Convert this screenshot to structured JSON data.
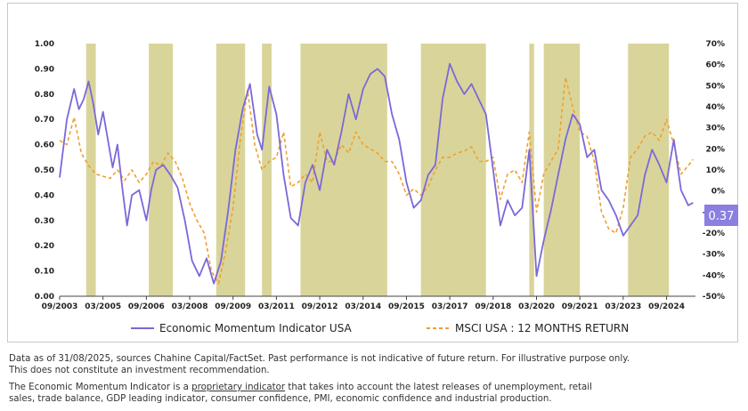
{
  "chart_data": {
    "type": "line",
    "y_left_ticks": [
      "1.00",
      "0.90",
      "0.80",
      "0.70",
      "0.60",
      "0.50",
      "0.40",
      "0.30",
      "0.20",
      "0.10",
      "0.00"
    ],
    "y_right_ticks": [
      "70%",
      "60%",
      "50%",
      "40%",
      "30%",
      "20%",
      "10%",
      "0%",
      "-10%",
      "-20%",
      "-30%",
      "-40%",
      "-50%"
    ],
    "x_ticks": [
      "09/2003",
      "03/2005",
      "09/2006",
      "03/2008",
      "09/2009",
      "03/2011",
      "09/2012",
      "03/2014",
      "09/2015",
      "03/2017",
      "09/2018",
      "03/2020",
      "09/2021",
      "03/2023",
      "09/2024"
    ],
    "ylim_left": [
      0,
      1
    ],
    "ylim_right": [
      -50,
      70
    ],
    "shaded_periods": [
      [
        "2004-08",
        "2004-12"
      ],
      [
        "2006-10",
        "2007-08"
      ],
      [
        "2009-02",
        "2010-02"
      ],
      [
        "2010-09",
        "2011-01"
      ],
      [
        "2012-01",
        "2015-01"
      ],
      [
        "2016-03",
        "2018-06"
      ],
      [
        "2019-12",
        "2020-02"
      ],
      [
        "2020-06",
        "2021-09"
      ],
      [
        "2023-05",
        "2024-10"
      ]
    ],
    "series": [
      {
        "name": "Economic Momentum Indicator USA",
        "axis": "left",
        "color": "#7b68d9",
        "style": "solid",
        "points": [
          [
            "2003-09",
            0.47
          ],
          [
            "2003-12",
            0.7
          ],
          [
            "2004-03",
            0.82
          ],
          [
            "2004-05",
            0.74
          ],
          [
            "2004-07",
            0.78
          ],
          [
            "2004-09",
            0.85
          ],
          [
            "2004-11",
            0.76
          ],
          [
            "2005-01",
            0.64
          ],
          [
            "2005-03",
            0.73
          ],
          [
            "2005-05",
            0.62
          ],
          [
            "2005-07",
            0.51
          ],
          [
            "2005-09",
            0.6
          ],
          [
            "2005-11",
            0.43
          ],
          [
            "2006-01",
            0.28
          ],
          [
            "2006-03",
            0.4
          ],
          [
            "2006-06",
            0.42
          ],
          [
            "2006-09",
            0.3
          ],
          [
            "2006-11",
            0.42
          ],
          [
            "2007-01",
            0.5
          ],
          [
            "2007-04",
            0.52
          ],
          [
            "2007-07",
            0.48
          ],
          [
            "2007-10",
            0.43
          ],
          [
            "2008-01",
            0.3
          ],
          [
            "2008-04",
            0.14
          ],
          [
            "2008-07",
            0.08
          ],
          [
            "2008-10",
            0.15
          ],
          [
            "2009-01",
            0.05
          ],
          [
            "2009-04",
            0.14
          ],
          [
            "2009-07",
            0.34
          ],
          [
            "2009-10",
            0.58
          ],
          [
            "2010-01",
            0.74
          ],
          [
            "2010-04",
            0.84
          ],
          [
            "2010-07",
            0.64
          ],
          [
            "2010-09",
            0.58
          ],
          [
            "2010-12",
            0.83
          ],
          [
            "2011-03",
            0.72
          ],
          [
            "2011-06",
            0.48
          ],
          [
            "2011-09",
            0.31
          ],
          [
            "2011-12",
            0.28
          ],
          [
            "2012-03",
            0.45
          ],
          [
            "2012-06",
            0.52
          ],
          [
            "2012-09",
            0.42
          ],
          [
            "2012-12",
            0.58
          ],
          [
            "2013-03",
            0.52
          ],
          [
            "2013-06",
            0.65
          ],
          [
            "2013-09",
            0.8
          ],
          [
            "2013-12",
            0.7
          ],
          [
            "2014-03",
            0.82
          ],
          [
            "2014-06",
            0.88
          ],
          [
            "2014-09",
            0.9
          ],
          [
            "2014-12",
            0.87
          ],
          [
            "2015-03",
            0.72
          ],
          [
            "2015-06",
            0.62
          ],
          [
            "2015-09",
            0.45
          ],
          [
            "2015-12",
            0.35
          ],
          [
            "2016-03",
            0.38
          ],
          [
            "2016-06",
            0.48
          ],
          [
            "2016-09",
            0.52
          ],
          [
            "2016-12",
            0.78
          ],
          [
            "2017-03",
            0.92
          ],
          [
            "2017-06",
            0.85
          ],
          [
            "2017-09",
            0.8
          ],
          [
            "2017-12",
            0.84
          ],
          [
            "2018-03",
            0.78
          ],
          [
            "2018-06",
            0.72
          ],
          [
            "2018-09",
            0.5
          ],
          [
            "2018-12",
            0.28
          ],
          [
            "2019-03",
            0.38
          ],
          [
            "2019-06",
            0.32
          ],
          [
            "2019-09",
            0.35
          ],
          [
            "2019-12",
            0.58
          ],
          [
            "2020-03",
            0.08
          ],
          [
            "2020-06",
            0.22
          ],
          [
            "2020-09",
            0.34
          ],
          [
            "2020-12",
            0.48
          ],
          [
            "2021-03",
            0.62
          ],
          [
            "2021-06",
            0.72
          ],
          [
            "2021-09",
            0.68
          ],
          [
            "2021-12",
            0.55
          ],
          [
            "2022-03",
            0.58
          ],
          [
            "2022-06",
            0.42
          ],
          [
            "2022-09",
            0.38
          ],
          [
            "2022-12",
            0.32
          ],
          [
            "2023-03",
            0.24
          ],
          [
            "2023-06",
            0.28
          ],
          [
            "2023-09",
            0.32
          ],
          [
            "2023-12",
            0.48
          ],
          [
            "2024-03",
            0.58
          ],
          [
            "2024-06",
            0.52
          ],
          [
            "2024-09",
            0.45
          ],
          [
            "2024-12",
            0.62
          ],
          [
            "2025-03",
            0.42
          ],
          [
            "2025-06",
            0.36
          ],
          [
            "2025-08",
            0.37
          ]
        ]
      },
      {
        "name": "MSCI USA : 12 MONTHS RETURN",
        "axis": "right",
        "color": "#f0a030",
        "style": "dashed",
        "points": [
          [
            "2003-09",
            24
          ],
          [
            "2003-12",
            22
          ],
          [
            "2004-03",
            35
          ],
          [
            "2004-06",
            18
          ],
          [
            "2004-09",
            12
          ],
          [
            "2004-12",
            8
          ],
          [
            "2005-03",
            7
          ],
          [
            "2005-06",
            6
          ],
          [
            "2005-09",
            10
          ],
          [
            "2005-12",
            5
          ],
          [
            "2006-03",
            10
          ],
          [
            "2006-06",
            4
          ],
          [
            "2006-09",
            8
          ],
          [
            "2006-12",
            14
          ],
          [
            "2007-03",
            12
          ],
          [
            "2007-06",
            18
          ],
          [
            "2007-09",
            14
          ],
          [
            "2007-12",
            6
          ],
          [
            "2008-03",
            -6
          ],
          [
            "2008-06",
            -14
          ],
          [
            "2008-09",
            -20
          ],
          [
            "2008-12",
            -38
          ],
          [
            "2009-03",
            -44
          ],
          [
            "2009-06",
            -28
          ],
          [
            "2009-09",
            -8
          ],
          [
            "2009-12",
            24
          ],
          [
            "2010-03",
            48
          ],
          [
            "2010-06",
            22
          ],
          [
            "2010-09",
            10
          ],
          [
            "2010-12",
            14
          ],
          [
            "2011-03",
            16
          ],
          [
            "2011-06",
            28
          ],
          [
            "2011-09",
            2
          ],
          [
            "2011-12",
            4
          ],
          [
            "2012-03",
            8
          ],
          [
            "2012-06",
            4
          ],
          [
            "2012-09",
            28
          ],
          [
            "2012-12",
            14
          ],
          [
            "2013-03",
            14
          ],
          [
            "2013-06",
            22
          ],
          [
            "2013-09",
            18
          ],
          [
            "2013-12",
            28
          ],
          [
            "2014-03",
            22
          ],
          [
            "2014-06",
            20
          ],
          [
            "2014-09",
            18
          ],
          [
            "2014-12",
            14
          ],
          [
            "2015-03",
            14
          ],
          [
            "2015-06",
            8
          ],
          [
            "2015-09",
            -2
          ],
          [
            "2015-12",
            1
          ],
          [
            "2016-03",
            -2
          ],
          [
            "2016-06",
            2
          ],
          [
            "2016-09",
            10
          ],
          [
            "2016-12",
            16
          ],
          [
            "2017-03",
            16
          ],
          [
            "2017-06",
            18
          ],
          [
            "2017-09",
            19
          ],
          [
            "2017-12",
            21
          ],
          [
            "2018-03",
            14
          ],
          [
            "2018-06",
            14
          ],
          [
            "2018-09",
            16
          ],
          [
            "2018-12",
            -4
          ],
          [
            "2019-03",
            8
          ],
          [
            "2019-06",
            10
          ],
          [
            "2019-09",
            4
          ],
          [
            "2019-12",
            28
          ],
          [
            "2020-03",
            -10
          ],
          [
            "2020-06",
            8
          ],
          [
            "2020-09",
            14
          ],
          [
            "2020-12",
            20
          ],
          [
            "2021-03",
            54
          ],
          [
            "2021-06",
            40
          ],
          [
            "2021-09",
            28
          ],
          [
            "2021-12",
            26
          ],
          [
            "2022-03",
            14
          ],
          [
            "2022-06",
            -10
          ],
          [
            "2022-09",
            -18
          ],
          [
            "2022-12",
            -20
          ],
          [
            "2023-03",
            -8
          ],
          [
            "2023-06",
            16
          ],
          [
            "2023-09",
            20
          ],
          [
            "2023-12",
            26
          ],
          [
            "2024-03",
            28
          ],
          [
            "2024-06",
            24
          ],
          [
            "2024-09",
            34
          ],
          [
            "2024-12",
            22
          ],
          [
            "2025-03",
            8
          ],
          [
            "2025-06",
            12
          ],
          [
            "2025-08",
            15
          ]
        ]
      }
    ],
    "latest_value_label": "0.37",
    "legend": [
      {
        "label": "Economic Momentum Indicator USA",
        "color": "#7b68d9",
        "style": "solid"
      },
      {
        "label": "MSCI USA : 12 MONTHS RETURN",
        "color": "#f0a030",
        "style": "dashed"
      }
    ],
    "legend_position": "bottom",
    "grid": false,
    "shade_color": "#d9d59a",
    "badge_color": "#8b7fe0"
  },
  "footer": {
    "disclaimer_line1": "Data as of 31/08/2025, sources Chahine Capital/FactSet. Past performance is not indicative of future return. For illustrative purpose only.",
    "disclaimer_line2": "This does not constitute an investment recommendation.",
    "description_prefix": "The Economic Momentum Indicator is a ",
    "description_link": "proprietary indicator",
    "description_suffix": " that takes into account the latest releases of unemployment, retail",
    "description_line2": "sales, trade balance, GDP leading indicator, consumer confidence, PMI, economic confidence and industrial production."
  }
}
